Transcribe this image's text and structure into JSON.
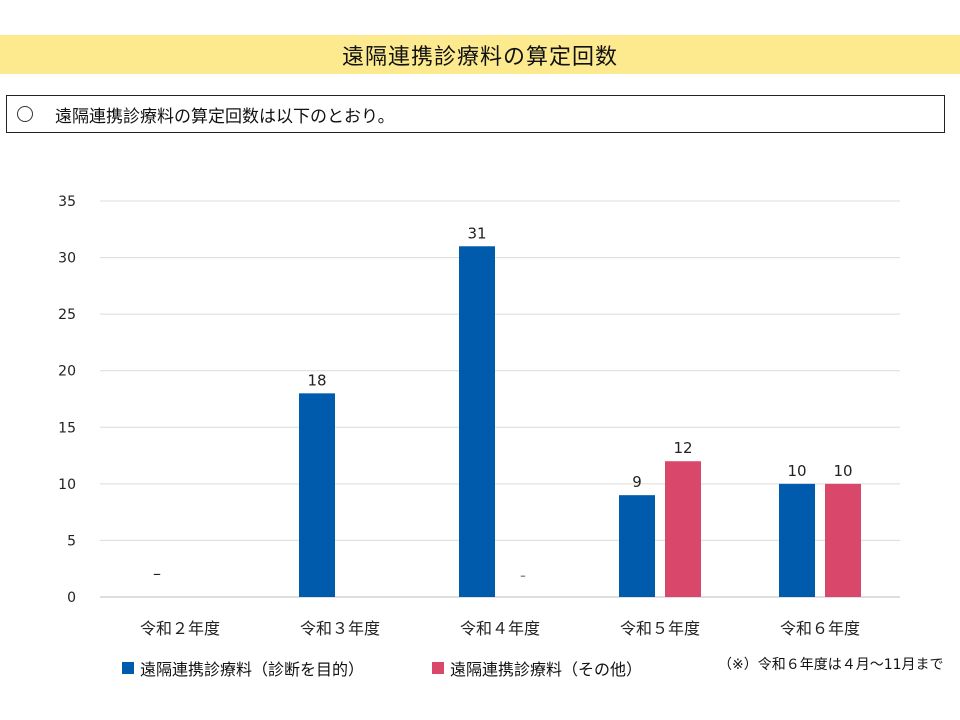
{
  "title": "遠隔連携診療料の算定回数",
  "subtitle": "遠隔連携診療料の算定回数は以下のとおり。",
  "note": "（※）令和６年度は４月～11月まで",
  "colors": {
    "series1": "#005bac",
    "series2": "#d9476b",
    "title_band": "#fdea8e"
  },
  "chart_data": {
    "type": "bar",
    "categories": [
      "令和２年度",
      "令和３年度",
      "令和４年度",
      "令和５年度",
      "令和６年度"
    ],
    "series": [
      {
        "name": "遠隔連携診療料（診断を目的）",
        "values": [
          null,
          18,
          31,
          9,
          10
        ],
        "labels": [
          "–",
          "18",
          "31",
          "9",
          "10"
        ]
      },
      {
        "name": "遠隔連携診療料（その他）",
        "values": [
          null,
          null,
          null,
          12,
          10
        ],
        "labels": [
          "",
          "",
          "–",
          "12",
          "10"
        ]
      }
    ],
    "ylim": [
      0,
      35
    ],
    "yticks": [
      0,
      5,
      10,
      15,
      20,
      25,
      30,
      35
    ],
    "grid": true,
    "legend": "bottom"
  }
}
